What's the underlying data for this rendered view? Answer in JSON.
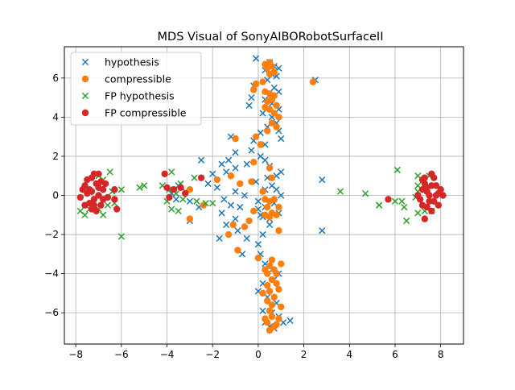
{
  "chart_data": {
    "type": "scatter",
    "title": "MDS Visual of SonyAIBORobotSurfaceII",
    "xlabel": "",
    "ylabel": "",
    "xlim": [
      -8.5,
      9.0
    ],
    "ylim": [
      -7.6,
      7.6
    ],
    "xticks": [
      -8,
      -6,
      -4,
      -2,
      0,
      2,
      4,
      6,
      8
    ],
    "yticks": [
      -6,
      -4,
      -2,
      0,
      2,
      4,
      6
    ],
    "grid": true,
    "legend_position": "top-left",
    "series": [
      {
        "name": "hypothesis",
        "marker": "x",
        "color": "#1f77b4",
        "points": [
          [
            -0.1,
            7.0
          ],
          [
            0.5,
            6.8
          ],
          [
            0.7,
            6.6
          ],
          [
            0.9,
            6.5
          ],
          [
            0.3,
            6.4
          ],
          [
            0.6,
            6.2
          ],
          [
            0.8,
            6.1
          ],
          [
            0.4,
            5.9
          ],
          [
            -0.2,
            5.6
          ],
          [
            0.7,
            5.5
          ],
          [
            0.9,
            5.3
          ],
          [
            -0.3,
            5.0
          ],
          [
            0.3,
            4.9
          ],
          [
            0.6,
            4.7
          ],
          [
            -0.4,
            4.6
          ],
          [
            0.9,
            4.4
          ],
          [
            0.2,
            4.2
          ],
          [
            0.6,
            4.0
          ],
          [
            0.8,
            3.7
          ],
          [
            0.4,
            3.5
          ],
          [
            0.1,
            3.2
          ],
          [
            0.9,
            3.3
          ],
          [
            1.0,
            2.9
          ],
          [
            -0.2,
            2.8
          ],
          [
            0.3,
            2.6
          ],
          [
            -0.3,
            2.3
          ],
          [
            0.1,
            2.0
          ],
          [
            0.3,
            1.8
          ],
          [
            -0.5,
            1.6
          ],
          [
            0.5,
            1.5
          ],
          [
            -1.2,
            3.0
          ],
          [
            -1.0,
            2.2
          ],
          [
            -1.3,
            1.8
          ],
          [
            -1.6,
            1.6
          ],
          [
            -1.0,
            1.4
          ],
          [
            -1.4,
            1.2
          ],
          [
            -2.0,
            1.1
          ],
          [
            -2.2,
            0.6
          ],
          [
            -1.8,
            0.4
          ],
          [
            -1.0,
            0.2
          ],
          [
            -0.6,
            0.0
          ],
          [
            -1.5,
            -0.2
          ],
          [
            -1.2,
            -0.5
          ],
          [
            -0.8,
            -0.6
          ],
          [
            -1.6,
            -0.9
          ],
          [
            -1.0,
            -1.2
          ],
          [
            -1.4,
            -1.5
          ],
          [
            -1.7,
            -2.2
          ],
          [
            -0.9,
            -1.8
          ],
          [
            -0.5,
            -2.2
          ],
          [
            -0.7,
            -3.0
          ],
          [
            0.0,
            -2.5
          ],
          [
            0.2,
            -2.0
          ],
          [
            0.5,
            -1.5
          ],
          [
            0.1,
            -1.0
          ],
          [
            0.3,
            -0.6
          ],
          [
            0.0,
            -0.3
          ],
          [
            0.3,
            0.3
          ],
          [
            0.6,
            0.5
          ],
          [
            0.8,
            0.3
          ],
          [
            1.0,
            0.0
          ],
          [
            0.7,
            -0.4
          ],
          [
            0.9,
            -0.9
          ],
          [
            0.5,
            -1.2
          ],
          [
            0.2,
            -1.1
          ],
          [
            0.0,
            -0.7
          ],
          [
            -0.1,
            0.7
          ],
          [
            0.4,
            0.9
          ],
          [
            0.8,
            1.0
          ],
          [
            1.0,
            1.2
          ],
          [
            0.1,
            -3.0
          ],
          [
            0.3,
            -3.5
          ],
          [
            0.6,
            -3.8
          ],
          [
            0.9,
            -4.0
          ],
          [
            0.2,
            -4.5
          ],
          [
            0.7,
            -4.3
          ],
          [
            0.0,
            -4.9
          ],
          [
            0.4,
            -5.2
          ],
          [
            0.8,
            -5.5
          ],
          [
            0.2,
            -5.9
          ],
          [
            0.6,
            -6.0
          ],
          [
            0.9,
            -6.2
          ],
          [
            0.3,
            -6.5
          ],
          [
            0.5,
            -6.7
          ],
          [
            1.4,
            -6.4
          ],
          [
            1.1,
            -6.5
          ],
          [
            0.7,
            -6.8
          ],
          [
            -3.2,
            0.2
          ],
          [
            -3.5,
            0.5
          ],
          [
            -3.0,
            -0.3
          ],
          [
            -2.6,
            -0.6
          ],
          [
            -3.0,
            -1.3
          ],
          [
            -2.5,
            1.8
          ],
          [
            -3.8,
            0.1
          ],
          [
            -3.6,
            -0.2
          ],
          [
            2.8,
            0.8
          ],
          [
            2.8,
            -1.8
          ],
          [
            2.5,
            5.9
          ]
        ]
      },
      {
        "name": "compressible",
        "marker": "o",
        "color": "#ff7f0e",
        "points": [
          [
            0.5,
            6.8
          ],
          [
            0.6,
            6.6
          ],
          [
            0.4,
            6.5
          ],
          [
            0.7,
            6.3
          ],
          [
            0.3,
            6.7
          ],
          [
            0.5,
            6.2
          ],
          [
            0.2,
            5.8
          ],
          [
            -0.1,
            5.7
          ],
          [
            -0.2,
            5.4
          ],
          [
            0.3,
            5.3
          ],
          [
            0.5,
            5.2
          ],
          [
            0.6,
            5.0
          ],
          [
            0.4,
            4.8
          ],
          [
            0.8,
            4.6
          ],
          [
            0.5,
            4.4
          ],
          [
            0.7,
            4.2
          ],
          [
            0.9,
            4.0
          ],
          [
            0.6,
            3.7
          ],
          [
            0.8,
            3.5
          ],
          [
            0.4,
            3.3
          ],
          [
            0.6,
            4.9
          ],
          [
            0.3,
            4.5
          ],
          [
            0.7,
            5.1
          ],
          [
            2.4,
            5.8
          ],
          [
            -0.1,
            3.0
          ],
          [
            0.1,
            2.6
          ],
          [
            -1.0,
            2.9
          ],
          [
            -0.2,
            1.7
          ],
          [
            0.5,
            1.4
          ],
          [
            0.6,
            0.9
          ],
          [
            -1.2,
            1.0
          ],
          [
            -0.8,
            0.6
          ],
          [
            -1.8,
            0.8
          ],
          [
            -2.4,
            -0.5
          ],
          [
            -3.0,
            0.3
          ],
          [
            -3.0,
            -1.2
          ],
          [
            -0.3,
            0.7
          ],
          [
            0.2,
            0.2
          ],
          [
            0.3,
            -0.2
          ],
          [
            0.5,
            -0.3
          ],
          [
            0.7,
            -0.2
          ],
          [
            0.4,
            -0.6
          ],
          [
            0.6,
            -0.9
          ],
          [
            0.5,
            -1.1
          ],
          [
            0.8,
            -1.0
          ],
          [
            0.9,
            -0.6
          ],
          [
            0.3,
            -1.0
          ],
          [
            -0.2,
            -0.8
          ],
          [
            -0.4,
            -1.3
          ],
          [
            -0.6,
            -1.6
          ],
          [
            -1.1,
            -1.5
          ],
          [
            -1.3,
            -2.0
          ],
          [
            -0.9,
            -2.8
          ],
          [
            0.0,
            -3.2
          ],
          [
            0.9,
            -1.8
          ],
          [
            0.6,
            -3.3
          ],
          [
            0.5,
            -3.6
          ],
          [
            0.7,
            -3.8
          ],
          [
            0.4,
            -4.0
          ],
          [
            0.6,
            -4.3
          ],
          [
            0.8,
            -4.5
          ],
          [
            0.4,
            -4.6
          ],
          [
            0.5,
            -4.9
          ],
          [
            0.7,
            -5.2
          ],
          [
            0.4,
            -5.4
          ],
          [
            0.6,
            -5.6
          ],
          [
            0.5,
            -5.9
          ],
          [
            1.0,
            -3.5
          ],
          [
            1.0,
            -5.7
          ],
          [
            0.6,
            -6.2
          ],
          [
            0.4,
            -6.5
          ],
          [
            0.7,
            -6.7
          ],
          [
            0.5,
            -6.9
          ],
          [
            0.8,
            -6.6
          ],
          [
            0.3,
            -6.3
          ],
          [
            0.9,
            -6.3
          ],
          [
            0.2,
            -5.0
          ],
          [
            0.8,
            -4.0
          ],
          [
            0.3,
            -3.8
          ],
          [
            0.9,
            -4.8
          ]
        ]
      },
      {
        "name": "FP hypothesis",
        "marker": "x",
        "color": "#2ca02c",
        "points": [
          [
            -7.6,
            -1.0
          ],
          [
            -7.4,
            -0.7
          ],
          [
            -7.8,
            -0.8
          ],
          [
            -6.8,
            -1.0
          ],
          [
            -7.0,
            -0.7
          ],
          [
            -6.6,
            -0.5
          ],
          [
            -6.4,
            0.2
          ],
          [
            -6.0,
            0.3
          ],
          [
            -6.0,
            -2.1
          ],
          [
            -6.5,
            1.2
          ],
          [
            -7.0,
            1.0
          ],
          [
            -6.8,
            0.8
          ],
          [
            -5.2,
            0.4
          ],
          [
            -5.0,
            0.5
          ],
          [
            -4.2,
            0.5
          ],
          [
            -4.0,
            -0.3
          ],
          [
            -3.8,
            -0.7
          ],
          [
            -3.9,
            0.3
          ],
          [
            -3.6,
            0.1
          ],
          [
            -3.5,
            -0.8
          ],
          [
            -3.3,
            -0.2
          ],
          [
            -3.4,
            0.6
          ],
          [
            -3.8,
            1.2
          ],
          [
            -2.8,
            0.9
          ],
          [
            -2.7,
            -0.3
          ],
          [
            -2.3,
            -0.4
          ],
          [
            -2.0,
            -0.4
          ],
          [
            -6.3,
            -0.4
          ],
          [
            3.6,
            0.2
          ],
          [
            4.7,
            0.1
          ],
          [
            5.3,
            -0.5
          ],
          [
            5.3,
            -0.5
          ],
          [
            6.0,
            -0.3
          ],
          [
            6.1,
            1.3
          ],
          [
            6.3,
            -0.3
          ],
          [
            6.4,
            -0.6
          ],
          [
            6.5,
            -1.3
          ],
          [
            7.0,
            -0.9
          ],
          [
            7.0,
            1.0
          ],
          [
            7.3,
            -0.8
          ],
          [
            7.5,
            1.0
          ],
          [
            7.6,
            -0.8
          ],
          [
            7.0,
            0.5
          ],
          [
            7.0,
            0.2
          ],
          [
            6.9,
            -0.1
          ]
        ]
      },
      {
        "name": "FP compressible",
        "marker": "o",
        "color": "#d62728",
        "points": [
          [
            -7.3,
            0.2
          ],
          [
            -7.1,
            0.6
          ],
          [
            -7.5,
            0.1
          ],
          [
            -7.2,
            -0.2
          ],
          [
            -7.4,
            -0.4
          ],
          [
            -7.0,
            0.0
          ],
          [
            -7.6,
            0.5
          ],
          [
            -7.2,
            1.1
          ],
          [
            -7.0,
            1.1
          ],
          [
            -7.3,
            0.9
          ],
          [
            -7.5,
            0.8
          ],
          [
            -7.7,
            0.3
          ],
          [
            -7.8,
            -0.1
          ],
          [
            -7.6,
            -0.5
          ],
          [
            -7.3,
            -0.7
          ],
          [
            -7.1,
            -0.8
          ],
          [
            -6.9,
            -0.5
          ],
          [
            -6.8,
            -0.2
          ],
          [
            -6.8,
            0.3
          ],
          [
            -6.9,
            0.7
          ],
          [
            -7.0,
            0.4
          ],
          [
            -7.4,
            0.3
          ],
          [
            -7.2,
            -0.5
          ],
          [
            -6.7,
            0.6
          ],
          [
            -6.6,
            -0.1
          ],
          [
            -6.3,
            0.3
          ],
          [
            -6.2,
            -0.7
          ],
          [
            -6.3,
            -0.2
          ],
          [
            -4.1,
            1.1
          ],
          [
            -4.0,
            0.4
          ],
          [
            -3.7,
            0.3
          ],
          [
            -3.4,
            0.4
          ],
          [
            -3.2,
            0.1
          ],
          [
            -2.5,
            0.9
          ],
          [
            -3.9,
            -0.1
          ],
          [
            5.7,
            -0.2
          ],
          [
            7.3,
            -1.2
          ],
          [
            7.4,
            0.2
          ],
          [
            7.6,
            0.5
          ],
          [
            7.8,
            0.0
          ],
          [
            7.5,
            -0.3
          ],
          [
            7.2,
            -0.5
          ],
          [
            7.0,
            0.0
          ],
          [
            7.3,
            0.6
          ],
          [
            7.7,
            0.9
          ],
          [
            7.9,
            -0.5
          ],
          [
            8.0,
            0.3
          ],
          [
            7.6,
            1.1
          ],
          [
            7.2,
            0.3
          ],
          [
            7.5,
            0.0
          ],
          [
            7.4,
            -0.6
          ],
          [
            7.8,
            0.5
          ],
          [
            7.9,
            0.1
          ],
          [
            7.1,
            -0.2
          ],
          [
            7.6,
            -0.8
          ],
          [
            7.3,
            0.9
          ],
          [
            8.1,
            0.0
          ],
          [
            7.7,
            -0.3
          ],
          [
            7.4,
            0.4
          ],
          [
            7.2,
            0.8
          ]
        ]
      }
    ]
  }
}
